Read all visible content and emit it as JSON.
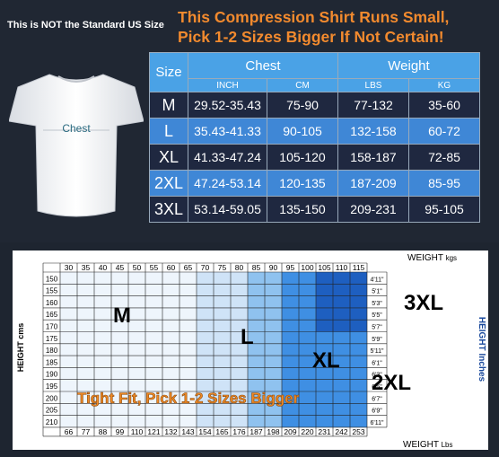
{
  "top": {
    "not_standard": "This is NOT the Standard US Size",
    "headline_line1": "This Compression Shirt Runs Small,",
    "headline_line2": "Pick 1-2 Sizes Bigger If Not Certain!",
    "shirt_label": "Chest"
  },
  "size_table": {
    "size_header": "Size",
    "chest_header": "Chest",
    "weight_header": "Weight",
    "units": [
      "INCH",
      "CM",
      "LBS",
      "KG"
    ],
    "rows": [
      {
        "size": "M",
        "inch": "29.52-35.43",
        "cm": "75-90",
        "lbs": "77-132",
        "kg": "35-60"
      },
      {
        "size": "L",
        "inch": "35.43-41.33",
        "cm": "90-105",
        "lbs": "132-158",
        "kg": "60-72"
      },
      {
        "size": "XL",
        "inch": "41.33-47.24",
        "cm": "105-120",
        "lbs": "158-187",
        "kg": "72-85"
      },
      {
        "size": "2XL",
        "inch": "47.24-53.14",
        "cm": "120-135",
        "lbs": "187-209",
        "kg": "85-95"
      },
      {
        "size": "3XL",
        "inch": "53.14-59.05",
        "cm": "135-150",
        "lbs": "209-231",
        "kg": "95-105"
      }
    ]
  },
  "grid_chart": {
    "weight_kgs_label": "WEIGHT",
    "weight_kgs_unit": "kgs",
    "weight_lbs_label": "WEIGHT",
    "weight_lbs_unit": "Lbs",
    "height_cms_label": "HEIGHT",
    "height_cms_unit": "cms",
    "height_inches_label": "HEIGHT",
    "height_inches_unit": "Inches",
    "kgs": [
      "30",
      "35",
      "40",
      "45",
      "50",
      "55",
      "60",
      "65",
      "70",
      "75",
      "80",
      "85",
      "90",
      "95",
      "100",
      "105",
      "110",
      "115"
    ],
    "lbs": [
      "66",
      "77",
      "88",
      "99",
      "110",
      "121",
      "132",
      "143",
      "154",
      "165",
      "176",
      "187",
      "198",
      "209",
      "220",
      "231",
      "242",
      "253"
    ],
    "cms": [
      "150",
      "155",
      "160",
      "165",
      "170",
      "175",
      "180",
      "185",
      "190",
      "195",
      "200",
      "205",
      "210"
    ],
    "inches": [
      "4'11\"",
      "5'1\"",
      "5'3\"",
      "5'5\"",
      "5'7\"",
      "5'9\"",
      "5'11\"",
      "6'1\"",
      "6'3\"",
      "6'5\"",
      "6'7\"",
      "6'9\"",
      "6'11\""
    ],
    "zone_m": "M",
    "zone_l": "L",
    "zone_xl": "XL",
    "zone_2xl": "2XL",
    "zone_3xl": "3XL",
    "tip": "Tight Fit, Pick 1-2 Sizes Bigger",
    "colors": {
      "m": "#eef5fc",
      "l": "#cfe3f7",
      "xl": "#8fc2ef",
      "xxl": "#3f8fe3",
      "xxxl": "#1e5fc0",
      "tip": "#f08a24"
    }
  }
}
